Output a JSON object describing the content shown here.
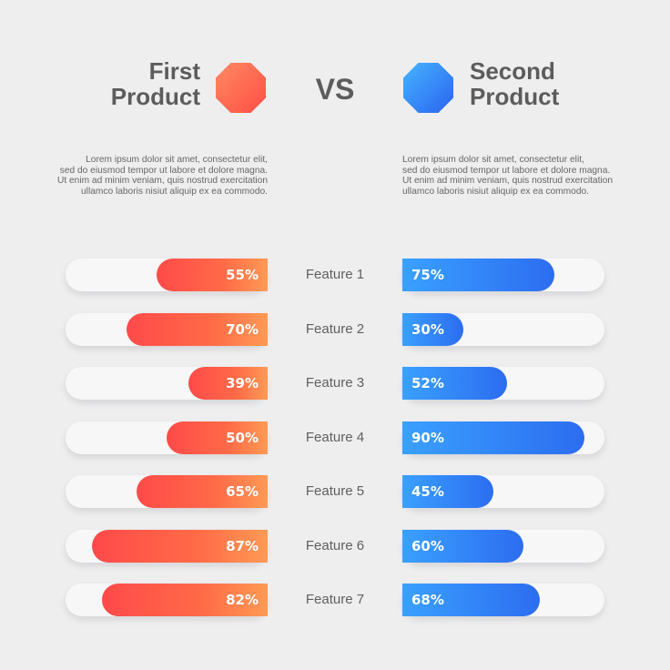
{
  "header": {
    "left_title": [
      "First",
      "Product"
    ],
    "vs": "VS",
    "right_title": [
      "Second",
      "Product"
    ]
  },
  "descriptions": {
    "left": [
      "Lorem ipsum dolor sit amet, consectetur elit,",
      "sed do eiusmod tempor ut labore et dolore magna.",
      "Ut enim ad minim veniam, quis nostrud exercitation",
      "ullamco laboris nisiut aliquip ex ea commodo."
    ],
    "right": [
      "Lorem ipsum dolor sit amet, consectetur elit,",
      "sed do eiusmod tempor ut labore et dolore magna.",
      "Ut enim ad minim veniam, quis nostrud exercitation",
      "ullamco laboris nisiut aliquip ex ea commodo."
    ]
  },
  "colors": {
    "first_product": "#ff5a4a",
    "second_product": "#2f7bf5",
    "text": "#5c5c5c",
    "background": "#eeeeef"
  },
  "chart_data": {
    "type": "bar",
    "categories": [
      "Feature 1",
      "Feature 2",
      "Feature 3",
      "Feature 4",
      "Feature 5",
      "Feature 6",
      "Feature 7"
    ],
    "series": [
      {
        "values": [
          55,
          70,
          39,
          50,
          65,
          87,
          82
        ],
        "labels": [
          "55%",
          "70%",
          "39%",
          "50%",
          "65%",
          "87%",
          "82%"
        ]
      },
      {
        "values": [
          75,
          30,
          52,
          90,
          45,
          60,
          68
        ],
        "labels": [
          "75%",
          "30%",
          "52%",
          "90%",
          "45%",
          "60%",
          "68%"
        ]
      }
    ],
    "ylim": [
      0,
      100
    ],
    "orientation": "horizontal-diverging"
  }
}
